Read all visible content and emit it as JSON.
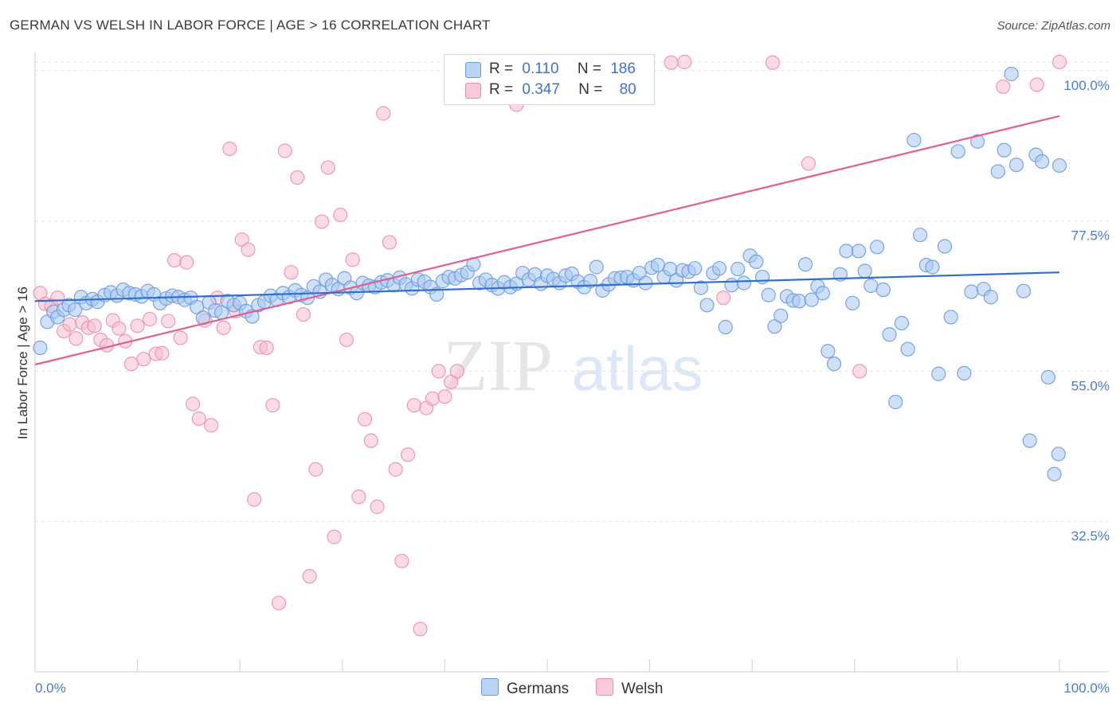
{
  "title": "GERMAN VS WELSH IN LABOR FORCE | AGE > 16 CORRELATION CHART",
  "source": "Source: ZipAtlas.com",
  "watermark": {
    "zip": "ZIP",
    "atlas": "atlas"
  },
  "legend": {
    "r_label": "R =",
    "n_label": "N =",
    "germans": {
      "r": "0.110",
      "n": "186"
    },
    "welsh": {
      "r": "0.347",
      "n": "80"
    }
  },
  "bottom_legend": {
    "germans": "Germans",
    "welsh": "Welsh"
  },
  "colors": {
    "germans_fill": "#a9c8f0",
    "germans_stroke": "#6a9be0",
    "germans_line": "#2f6fd0",
    "welsh_fill": "#f7bdd0",
    "welsh_stroke": "#ec8fae",
    "welsh_line": "#e0608e",
    "tick_text": "#4a7cc9",
    "grid": "#e2e2e2"
  },
  "chart_data": {
    "type": "scatter",
    "title": "GERMAN VS WELSH IN LABOR FORCE | AGE > 16 CORRELATION CHART",
    "xlabel": "",
    "ylabel": "In Labor Force | Age > 16",
    "x_tick_labels": [
      "0.0%",
      "100.0%"
    ],
    "y_tick_labels": [
      "32.5%",
      "55.0%",
      "77.5%",
      "100.0%"
    ],
    "y_ticks": [
      32.5,
      55.0,
      77.5,
      100.0
    ],
    "xlim": [
      0,
      100
    ],
    "ylim": [
      10,
      102
    ],
    "grid": true,
    "legend_position": "top-center",
    "series": [
      {
        "name": "Germans",
        "r": 0.11,
        "n": 186,
        "trend": {
          "x": [
            0,
            100
          ],
          "y": [
            65.5,
            69.8
          ]
        },
        "points": [
          [
            0.5,
            58.5
          ],
          [
            1.2,
            62.4
          ],
          [
            1.8,
            63.9
          ],
          [
            2.2,
            63.1
          ],
          [
            2.8,
            64.2
          ],
          [
            3.3,
            64.9
          ],
          [
            3.9,
            64.2
          ],
          [
            4.5,
            66.1
          ],
          [
            5.0,
            65.2
          ],
          [
            5.6,
            65.8
          ],
          [
            6.1,
            65.4
          ],
          [
            6.8,
            66.4
          ],
          [
            7.4,
            66.8
          ],
          [
            8.0,
            66.3
          ],
          [
            8.6,
            67.2
          ],
          [
            9.2,
            66.7
          ],
          [
            9.8,
            66.5
          ],
          [
            10.4,
            66.2
          ],
          [
            11.0,
            67.0
          ],
          [
            11.6,
            66.5
          ],
          [
            12.2,
            65.2
          ],
          [
            12.8,
            65.9
          ],
          [
            13.4,
            66.3
          ],
          [
            14.0,
            66.1
          ],
          [
            14.6,
            65.7
          ],
          [
            15.2,
            66.0
          ],
          [
            15.8,
            64.6
          ],
          [
            16.4,
            63.0
          ],
          [
            17.0,
            65.3
          ],
          [
            17.6,
            64.1
          ],
          [
            18.2,
            63.8
          ],
          [
            18.8,
            65.5
          ],
          [
            19.4,
            64.9
          ],
          [
            20.0,
            65.2
          ],
          [
            20.6,
            64.0
          ],
          [
            21.2,
            63.2
          ],
          [
            21.8,
            64.9
          ],
          [
            22.4,
            65.4
          ],
          [
            23.0,
            66.3
          ],
          [
            23.6,
            65.7
          ],
          [
            24.2,
            66.7
          ],
          [
            24.8,
            66.1
          ],
          [
            25.4,
            67.1
          ],
          [
            26.0,
            66.4
          ],
          [
            26.6,
            66.0
          ],
          [
            27.2,
            67.7
          ],
          [
            27.8,
            66.9
          ],
          [
            28.4,
            68.7
          ],
          [
            29.0,
            67.9
          ],
          [
            29.6,
            67.3
          ],
          [
            30.2,
            68.9
          ],
          [
            30.8,
            67.5
          ],
          [
            31.4,
            66.7
          ],
          [
            32.0,
            68.2
          ],
          [
            32.6,
            67.8
          ],
          [
            33.2,
            67.6
          ],
          [
            33.8,
            68.3
          ],
          [
            34.4,
            68.6
          ],
          [
            35.0,
            67.9
          ],
          [
            35.6,
            69.0
          ],
          [
            36.2,
            68.0
          ],
          [
            36.8,
            67.4
          ],
          [
            37.4,
            68.7
          ],
          [
            38.0,
            68.4
          ],
          [
            38.6,
            67.6
          ],
          [
            39.2,
            66.5
          ],
          [
            39.8,
            68.5
          ],
          [
            40.4,
            69.1
          ],
          [
            41.0,
            68.9
          ],
          [
            41.6,
            69.4
          ],
          [
            42.2,
            69.8
          ],
          [
            42.8,
            71.0
          ],
          [
            43.4,
            68.2
          ],
          [
            44.0,
            68.7
          ],
          [
            44.6,
            67.9
          ],
          [
            45.2,
            67.4
          ],
          [
            45.8,
            68.3
          ],
          [
            46.4,
            67.6
          ],
          [
            47.0,
            68.1
          ],
          [
            47.6,
            69.7
          ],
          [
            48.2,
            68.7
          ],
          [
            48.8,
            69.5
          ],
          [
            49.4,
            68.1
          ],
          [
            50.0,
            69.3
          ],
          [
            50.6,
            68.8
          ],
          [
            51.2,
            68.2
          ],
          [
            51.8,
            69.3
          ],
          [
            52.4,
            69.6
          ],
          [
            53.0,
            68.4
          ],
          [
            53.6,
            67.6
          ],
          [
            54.2,
            68.5
          ],
          [
            54.8,
            70.6
          ],
          [
            55.4,
            67.1
          ],
          [
            56.0,
            68.0
          ],
          [
            56.6,
            68.9
          ],
          [
            57.2,
            69.0
          ],
          [
            57.8,
            69.1
          ],
          [
            58.4,
            68.6
          ],
          [
            59.0,
            69.7
          ],
          [
            59.6,
            68.2
          ],
          [
            60.2,
            70.5
          ],
          [
            60.8,
            70.9
          ],
          [
            61.4,
            69.1
          ],
          [
            62.0,
            70.3
          ],
          [
            62.6,
            68.6
          ],
          [
            63.2,
            70.1
          ],
          [
            63.8,
            69.9
          ],
          [
            64.4,
            70.4
          ],
          [
            65.0,
            67.5
          ],
          [
            65.6,
            64.9
          ],
          [
            66.2,
            69.7
          ],
          [
            66.8,
            70.4
          ],
          [
            67.4,
            61.6
          ],
          [
            68.0,
            67.9
          ],
          [
            68.6,
            70.3
          ],
          [
            69.2,
            68.2
          ],
          [
            69.8,
            72.3
          ],
          [
            70.4,
            71.4
          ],
          [
            71.0,
            69.1
          ],
          [
            71.6,
            66.4
          ],
          [
            72.2,
            61.7
          ],
          [
            72.8,
            63.3
          ],
          [
            73.4,
            66.2
          ],
          [
            74.0,
            65.6
          ],
          [
            74.6,
            65.5
          ],
          [
            75.2,
            71.0
          ],
          [
            75.8,
            65.7
          ],
          [
            76.4,
            67.7
          ],
          [
            76.9,
            66.7
          ],
          [
            77.4,
            58.0
          ],
          [
            78.0,
            56.1
          ],
          [
            78.6,
            69.5
          ],
          [
            79.2,
            73.0
          ],
          [
            79.8,
            65.2
          ],
          [
            80.4,
            73.0
          ],
          [
            81.0,
            70.0
          ],
          [
            81.6,
            67.8
          ],
          [
            82.2,
            73.6
          ],
          [
            82.8,
            67.2
          ],
          [
            83.4,
            60.5
          ],
          [
            84.0,
            50.4
          ],
          [
            84.6,
            62.2
          ],
          [
            85.2,
            58.3
          ],
          [
            85.8,
            89.6
          ],
          [
            86.4,
            75.4
          ],
          [
            87.0,
            70.9
          ],
          [
            87.6,
            70.6
          ],
          [
            88.2,
            54.6
          ],
          [
            88.8,
            73.7
          ],
          [
            89.4,
            63.1
          ],
          [
            90.1,
            87.9
          ],
          [
            90.7,
            54.7
          ],
          [
            91.4,
            66.9
          ],
          [
            92.0,
            89.4
          ],
          [
            92.6,
            67.3
          ],
          [
            93.3,
            66.1
          ],
          [
            94.0,
            84.9
          ],
          [
            94.6,
            88.1
          ],
          [
            95.3,
            99.5
          ],
          [
            95.8,
            85.9
          ],
          [
            96.5,
            67.0
          ],
          [
            97.1,
            44.6
          ],
          [
            97.7,
            87.4
          ],
          [
            98.3,
            86.4
          ],
          [
            98.9,
            54.1
          ],
          [
            99.5,
            39.6
          ],
          [
            99.9,
            42.6
          ],
          [
            100.0,
            85.8
          ]
        ]
      },
      {
        "name": "Welsh",
        "r": 0.347,
        "n": 80,
        "trend": {
          "x": [
            0,
            100
          ],
          "y": [
            56.0,
            93.2
          ]
        },
        "points": [
          [
            0.5,
            66.7
          ],
          [
            1.0,
            65.1
          ],
          [
            1.6,
            64.8
          ],
          [
            2.2,
            66.0
          ],
          [
            2.8,
            61.0
          ],
          [
            3.4,
            62.0
          ],
          [
            4.0,
            59.9
          ],
          [
            4.6,
            62.3
          ],
          [
            5.2,
            61.5
          ],
          [
            5.8,
            61.8
          ],
          [
            6.4,
            59.7
          ],
          [
            7.0,
            58.9
          ],
          [
            7.6,
            62.6
          ],
          [
            8.2,
            61.4
          ],
          [
            8.8,
            59.5
          ],
          [
            9.4,
            56.1
          ],
          [
            10.0,
            61.8
          ],
          [
            10.6,
            56.8
          ],
          [
            11.2,
            62.8
          ],
          [
            11.8,
            57.6
          ],
          [
            12.4,
            57.7
          ],
          [
            13.0,
            62.5
          ],
          [
            13.6,
            71.6
          ],
          [
            14.2,
            60.0
          ],
          [
            14.8,
            71.3
          ],
          [
            15.4,
            50.1
          ],
          [
            16.0,
            47.9
          ],
          [
            16.6,
            62.6
          ],
          [
            17.2,
            46.9
          ],
          [
            17.8,
            66.0
          ],
          [
            18.4,
            61.5
          ],
          [
            19.0,
            88.3
          ],
          [
            19.6,
            64.0
          ],
          [
            20.2,
            74.7
          ],
          [
            20.8,
            73.2
          ],
          [
            21.4,
            35.8
          ],
          [
            22.0,
            58.6
          ],
          [
            22.6,
            58.5
          ],
          [
            23.2,
            49.9
          ],
          [
            23.8,
            20.3
          ],
          [
            24.4,
            88.0
          ],
          [
            25.0,
            69.8
          ],
          [
            25.6,
            84.0
          ],
          [
            26.2,
            63.5
          ],
          [
            26.8,
            24.3
          ],
          [
            27.4,
            40.3
          ],
          [
            28.0,
            77.4
          ],
          [
            28.6,
            85.5
          ],
          [
            29.2,
            30.2
          ],
          [
            29.8,
            78.4
          ],
          [
            30.4,
            59.7
          ],
          [
            31.0,
            71.7
          ],
          [
            31.6,
            36.2
          ],
          [
            32.2,
            47.8
          ],
          [
            32.8,
            44.6
          ],
          [
            33.4,
            34.7
          ],
          [
            34.0,
            93.6
          ],
          [
            34.6,
            74.3
          ],
          [
            35.2,
            40.3
          ],
          [
            35.8,
            26.6
          ],
          [
            36.4,
            42.5
          ],
          [
            37.0,
            49.9
          ],
          [
            37.6,
            16.4
          ],
          [
            38.2,
            49.5
          ],
          [
            38.8,
            50.9
          ],
          [
            39.4,
            55.0
          ],
          [
            40.0,
            51.2
          ],
          [
            40.6,
            53.4
          ],
          [
            41.2,
            55.0
          ],
          [
            47.0,
            94.9
          ],
          [
            57.3,
            96.6
          ],
          [
            62.1,
            101.2
          ],
          [
            63.4,
            101.3
          ],
          [
            67.2,
            66.0
          ],
          [
            72.0,
            101.2
          ],
          [
            75.5,
            86.1
          ],
          [
            80.5,
            55.0
          ],
          [
            94.5,
            97.6
          ],
          [
            97.8,
            97.9
          ],
          [
            100.0,
            101.3
          ]
        ]
      }
    ]
  }
}
